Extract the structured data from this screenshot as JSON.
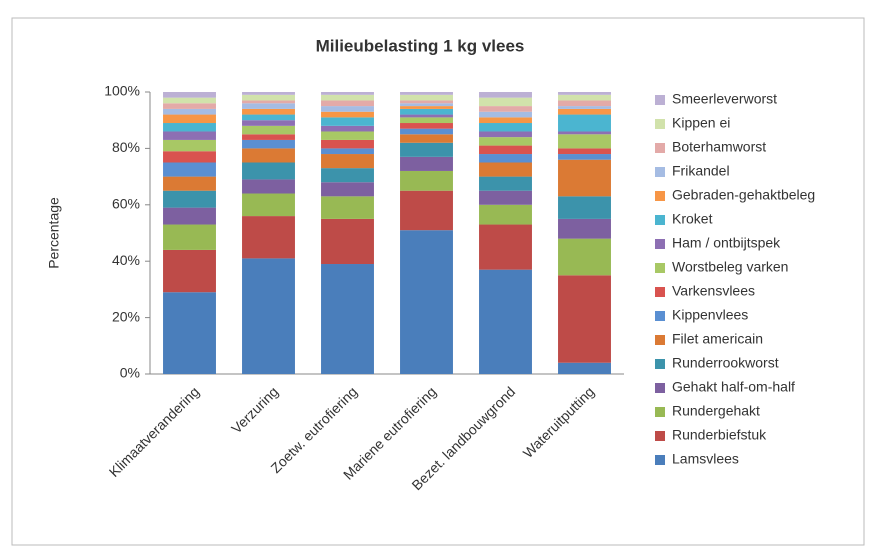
{
  "chart_data": {
    "type": "stacked_bar",
    "title": "Milieubelasting 1 kg vlees",
    "ylabel": "Percentage",
    "categories": [
      "Klimaatverandering",
      "Verzuring",
      "Zoetw. eutrofiering",
      "Mariene eutrofiering",
      "Bezet. landbouwgrond",
      "Wateruitputting"
    ],
    "series": [
      {
        "name": "Lamsvlees",
        "color": "#4a7ebb",
        "values": [
          29,
          41,
          39,
          51,
          37,
          4
        ]
      },
      {
        "name": "Runderbiefstuk",
        "color": "#be4b48",
        "values": [
          15,
          15,
          16,
          14,
          16,
          31
        ]
      },
      {
        "name": "Rundergehakt",
        "color": "#98b954",
        "values": [
          9,
          8,
          8,
          7,
          7,
          13
        ]
      },
      {
        "name": "Gehakt half-om-half",
        "color": "#7d60a0",
        "values": [
          6,
          5,
          5,
          5,
          5,
          7
        ]
      },
      {
        "name": "Runderrookworst",
        "color": "#3c93ab",
        "values": [
          6,
          6,
          5,
          5,
          5,
          8
        ]
      },
      {
        "name": "Filet americain",
        "color": "#db7a34",
        "values": [
          5,
          5,
          5,
          3,
          5,
          13
        ]
      },
      {
        "name": "Kippenvlees",
        "color": "#5a8fd2",
        "values": [
          5,
          3,
          2,
          2,
          3,
          2
        ]
      },
      {
        "name": "Varkensvlees",
        "color": "#d9534f",
        "values": [
          4,
          2,
          3,
          2,
          3,
          2
        ]
      },
      {
        "name": "Worstbeleg varken",
        "color": "#a8c865",
        "values": [
          4,
          3,
          3,
          2,
          3,
          5
        ]
      },
      {
        "name": "Ham / ontbijtspek",
        "color": "#8d6fb3",
        "values": [
          3,
          2,
          2,
          1,
          2,
          1
        ]
      },
      {
        "name": "Kroket",
        "color": "#4bb5d0",
        "values": [
          3,
          2,
          3,
          2,
          3,
          6
        ]
      },
      {
        "name": "Gebraden-gehaktbeleg",
        "color": "#f79646",
        "values": [
          3,
          2,
          2,
          1,
          2,
          2
        ]
      },
      {
        "name": "Frikandel",
        "color": "#a5bce3",
        "values": [
          2,
          2,
          2,
          1,
          2,
          1
        ]
      },
      {
        "name": "Boterhamworst",
        "color": "#e3aaa8",
        "values": [
          2,
          1,
          2,
          1,
          2,
          2
        ]
      },
      {
        "name": "Kippen ei",
        "color": "#d1e2ab",
        "values": [
          2,
          2,
          2,
          2,
          3,
          2
        ]
      },
      {
        "name": "Smeerleverworst",
        "color": "#bcb0d4",
        "values": [
          2,
          1,
          1,
          1,
          2,
          1
        ]
      }
    ],
    "ylim": [
      0,
      100
    ],
    "yticks": [
      {
        "value": 0,
        "label": "0%"
      },
      {
        "value": 20,
        "label": "20%"
      },
      {
        "value": 40,
        "label": "40%"
      },
      {
        "value": 60,
        "label": "60%"
      },
      {
        "value": 80,
        "label": "80%"
      },
      {
        "value": 100,
        "label": "100%"
      }
    ]
  }
}
